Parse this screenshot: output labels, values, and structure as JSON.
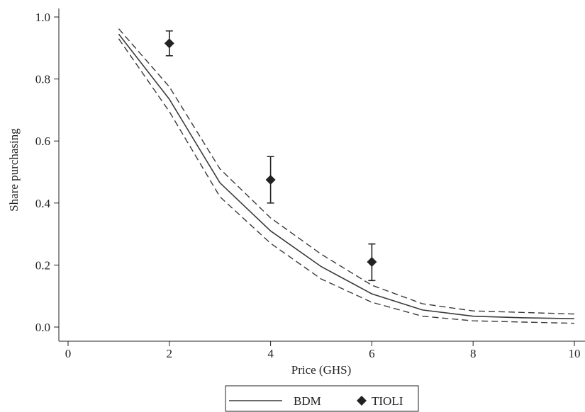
{
  "chart_data": {
    "type": "line",
    "xlabel": "Price (GHS)",
    "ylabel": "Share purchasing",
    "xlim": [
      0,
      10
    ],
    "ylim": [
      0,
      1.0
    ],
    "xticks": [
      0,
      2,
      4,
      6,
      8,
      10
    ],
    "yticks": [
      0.0,
      0.2,
      0.4,
      0.6,
      0.8,
      1.0
    ],
    "xtick_labels": [
      "0",
      "2",
      "4",
      "6",
      "8",
      "10"
    ],
    "ytick_labels": [
      "0.0",
      "0.2",
      "0.4",
      "0.6",
      "0.8",
      "1.0"
    ],
    "grid": false,
    "legend": {
      "position": "bottom-center",
      "entries": [
        "BDM",
        "TIOLI"
      ]
    },
    "series": [
      {
        "name": "BDM",
        "style": "solid",
        "x": [
          1,
          2,
          3,
          4,
          5,
          6,
          7,
          8,
          9,
          10
        ],
        "y": [
          0.945,
          0.735,
          0.465,
          0.31,
          0.195,
          0.107,
          0.055,
          0.035,
          0.03,
          0.027
        ],
        "ci_lower": [
          0.93,
          0.695,
          0.42,
          0.27,
          0.155,
          0.08,
          0.035,
          0.02,
          0.016,
          0.012
        ],
        "ci_upper": [
          0.962,
          0.775,
          0.51,
          0.352,
          0.235,
          0.135,
          0.075,
          0.052,
          0.047,
          0.042
        ]
      },
      {
        "name": "TIOLI",
        "style": "diamond-markers-with-error-bars",
        "x": [
          2,
          4,
          6
        ],
        "y": [
          0.915,
          0.475,
          0.21
        ],
        "err_lower": [
          0.875,
          0.4,
          0.15
        ],
        "err_upper": [
          0.955,
          0.55,
          0.268
        ]
      }
    ],
    "colors": {
      "line": "#3a3a3a",
      "marker": "#222222",
      "axis": "#222222"
    }
  }
}
